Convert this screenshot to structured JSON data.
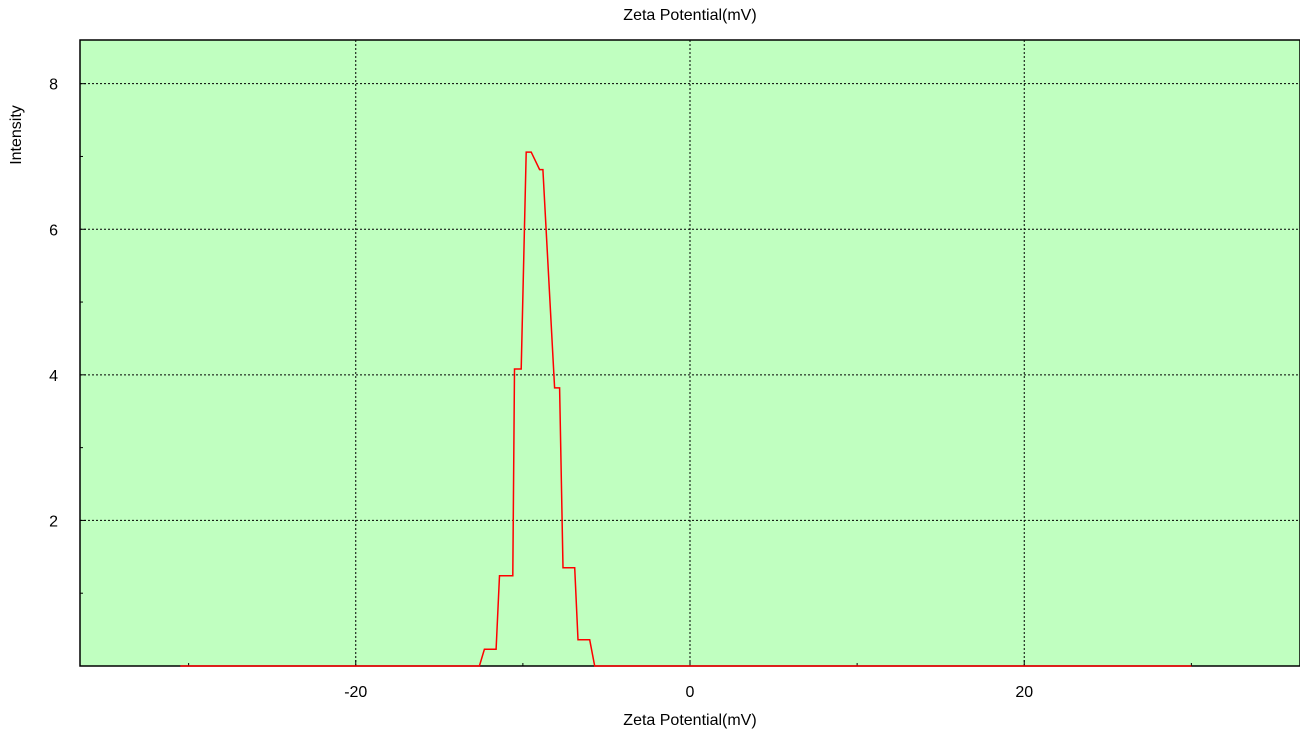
{
  "chart_data": {
    "type": "line",
    "title": "Zeta Potential(mV)",
    "xlabel": "Zeta Potential(mV)",
    "ylabel": "Intensity",
    "xlim": [
      -36.5,
      36.5
    ],
    "ylim": [
      0,
      8.6
    ],
    "x_ticks": [
      -20,
      0,
      20
    ],
    "x_tick_labels": [
      "-20",
      "0",
      "20"
    ],
    "y_ticks": [
      2,
      4,
      6,
      8
    ],
    "y_tick_labels": [
      "2",
      "4",
      "6",
      "8"
    ],
    "x_minor_ticks": [
      -30,
      -10,
      10,
      30
    ],
    "y_minor_ticks": [
      1,
      3,
      5,
      7
    ],
    "grid": true,
    "legend": "none",
    "colors": {
      "plot_background": "#c0ffc0",
      "line": "#ff0000",
      "grid": "#000000"
    },
    "series": [
      {
        "x": [
          -30.5,
          -12.6,
          -12.3,
          -11.6,
          -11.4,
          -10.6,
          -10.5,
          -10.1,
          -9.8,
          -9.5,
          -9.0,
          -8.8,
          -8.1,
          -7.8,
          -7.6,
          -6.9,
          -6.7,
          -6.0,
          -5.7,
          -5.0,
          -4.8,
          30.0
        ],
        "y": [
          0,
          0,
          0.23,
          0.23,
          1.24,
          1.24,
          4.08,
          4.08,
          7.06,
          7.06,
          6.82,
          6.82,
          3.82,
          3.82,
          1.35,
          1.35,
          0.36,
          0.36,
          0,
          0,
          0,
          0
        ]
      }
    ]
  }
}
